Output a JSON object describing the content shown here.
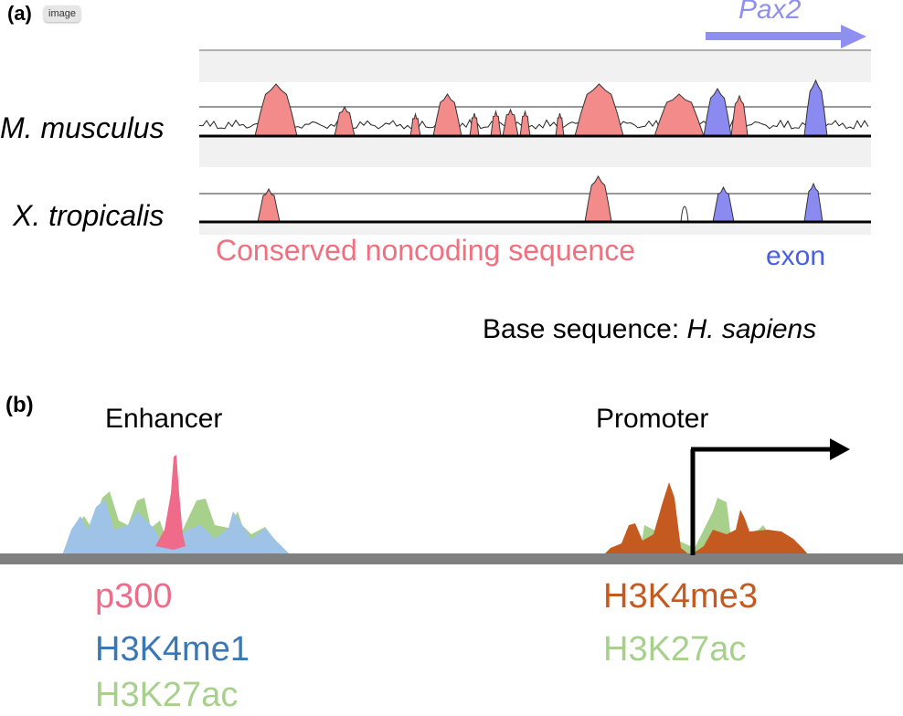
{
  "badge": "image",
  "panel_a": {
    "label": "(a)",
    "gene": "Pax2",
    "species": [
      "M. musculus",
      "X. tropicalis"
    ],
    "legend_cns": "Conserved noncoding sequence",
    "legend_exon": "exon",
    "base_prefix": "Base sequence: ",
    "base_species": "H. sapiens"
  },
  "panel_b": {
    "label": "(b)",
    "enhancer": "Enhancer",
    "promoter": "Promoter",
    "enhancer_marks": [
      "p300",
      "H3K4me1",
      "H3K27ac"
    ],
    "promoter_marks": [
      "H3K4me3",
      "H3K27ac"
    ]
  },
  "colors": {
    "cns": "#f48b8b",
    "exon": "#8a8af0",
    "gene_arrow": "#8f8ff2",
    "p300": "#f06a8a",
    "H3K4me1": "#3a78b5",
    "H3K4me1_fill": "#9fc3e6",
    "H3K27ac": "#a8d08d",
    "H3K4me3": "#c55a20"
  }
}
